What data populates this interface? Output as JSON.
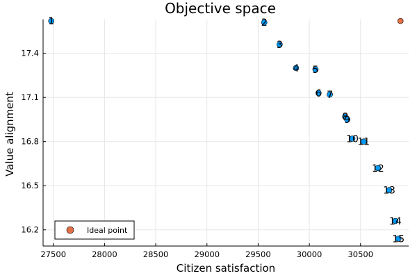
{
  "chart_data": {
    "type": "scatter",
    "title": "Objective space",
    "xlabel": "Citizen satisfaction",
    "ylabel": "Value alignment",
    "xlim": [
      27400,
      30970
    ],
    "ylim": [
      16.09,
      17.63
    ],
    "xticks": [
      27500,
      28000,
      28500,
      29000,
      29500,
      30000,
      30500
    ],
    "xtick_labels": [
      "27500",
      "28000",
      "28500",
      "29000",
      "29500",
      "30000",
      "30500"
    ],
    "yticks": [
      16.2,
      16.5,
      16.8,
      17.1,
      17.4
    ],
    "ytick_labels": [
      "16.2",
      "16.5",
      "16.8",
      "17.1",
      "17.4"
    ],
    "grid": true,
    "legend_position": "bottom-left",
    "series": [
      {
        "color": "#009AFA",
        "points": [
          {
            "x": 27480,
            "y": 17.62,
            "label": "1"
          },
          {
            "x": 29560,
            "y": 17.61,
            "label": "2"
          },
          {
            "x": 29710,
            "y": 17.46,
            "label": "3"
          },
          {
            "x": 29870,
            "y": 17.3,
            "label": "4"
          },
          {
            "x": 30060,
            "y": 17.29,
            "label": "5"
          },
          {
            "x": 30090,
            "y": 17.13,
            "label": "6"
          },
          {
            "x": 30200,
            "y": 17.12,
            "label": "7"
          },
          {
            "x": 30350,
            "y": 16.97,
            "label": "8"
          },
          {
            "x": 30370,
            "y": 16.95,
            "label": "9"
          },
          {
            "x": 30420,
            "y": 16.82,
            "label": "10"
          },
          {
            "x": 30530,
            "y": 16.8,
            "label": "11"
          },
          {
            "x": 30670,
            "y": 16.62,
            "label": "12"
          },
          {
            "x": 30780,
            "y": 16.47,
            "label": "13"
          },
          {
            "x": 30840,
            "y": 16.26,
            "label": "14"
          },
          {
            "x": 30870,
            "y": 16.14,
            "label": "15"
          }
        ]
      },
      {
        "name": "Ideal point",
        "color": "#E26F46",
        "points": [
          {
            "x": 30890,
            "y": 17.62
          }
        ]
      }
    ]
  }
}
